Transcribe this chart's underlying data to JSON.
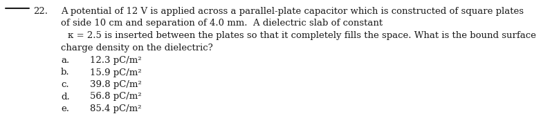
{
  "question_number": "22.",
  "line_label": "____",
  "q_text_line1": "A potential of 12 V is applied across a parallel-plate capacitor which is constructed of square plates",
  "q_text_line2": "of side 10 cm and separation of 4.0 mm.  A dielectric slab of constant",
  "q_text_line3": "κ = 2.5 is inserted between the plates so that it completely fills the space. What is the bound surface",
  "q_text_line4": "charge density on the dielectric?",
  "choices": [
    [
      "a.",
      "12.3 pC/m²"
    ],
    [
      "b.",
      "15.9 pC/m²"
    ],
    [
      "c.",
      "39.8 pC/m²"
    ],
    [
      "d.",
      "56.8 pC/m²"
    ],
    [
      "e.",
      "85.4 pC/m²"
    ]
  ],
  "bg_color": "#ffffff",
  "text_color": "#1a1a1a",
  "font_size": 9.5,
  "font_family": "DejaVu Serif",
  "fig_width": 7.82,
  "fig_height": 1.94,
  "dpi": 100
}
